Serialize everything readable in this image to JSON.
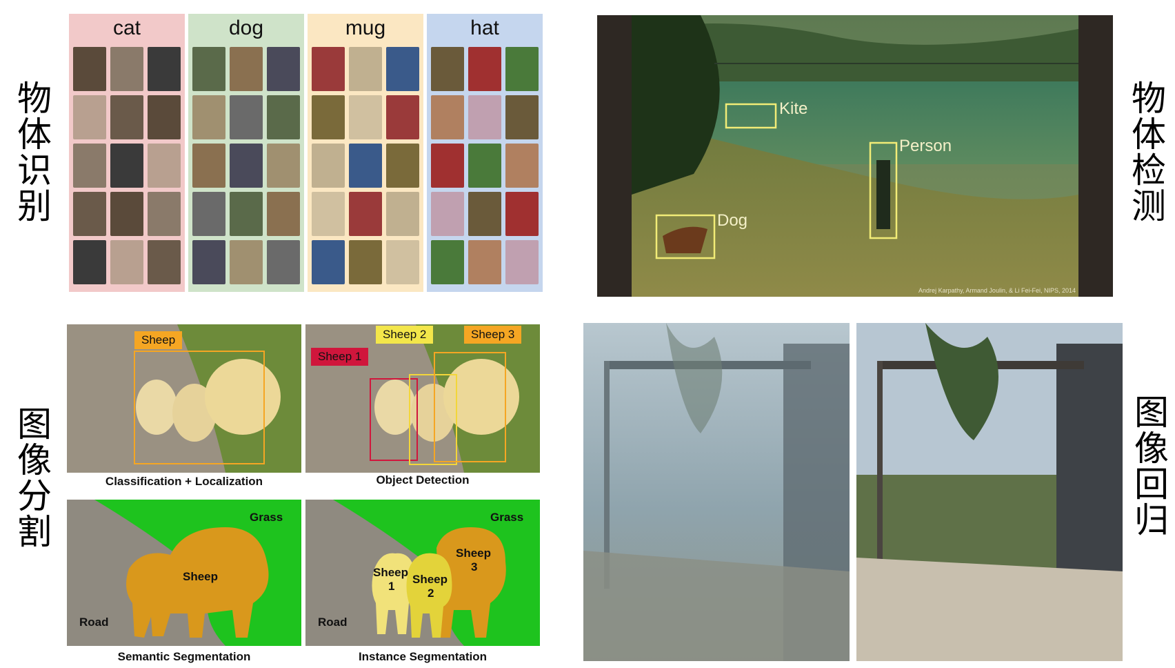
{
  "labels": {
    "recognition": "物体识别",
    "detection": "物体检测",
    "segmentation": "图像分割",
    "regression": "图像回归"
  },
  "recognition_grid": {
    "categories": [
      {
        "name": "cat",
        "bg": "#f2c9c9"
      },
      {
        "name": "dog",
        "bg": "#cfe3c9"
      },
      {
        "name": "mug",
        "bg": "#fbe7c2"
      },
      {
        "name": "hat",
        "bg": "#c5d6ee"
      }
    ]
  },
  "detection_photo": {
    "labels": [
      "Kite",
      "Person",
      "Dog"
    ],
    "credit": "Andrej Karpathy, Armand Joulin, & Li Fei-Fei, NIPS, 2014"
  },
  "segmentation": {
    "classification_caption": "Classification + Localization",
    "detection_caption": "Object Detection",
    "semantic_caption": "Semantic Segmentation",
    "instance_caption": "Instance Segmentation",
    "tags": {
      "sheep": "Sheep",
      "sheep1": "Sheep 1",
      "sheep2": "Sheep 2",
      "sheep3": "Sheep 3"
    },
    "semantic": {
      "grass": "Grass",
      "road": "Road",
      "sheep": "Sheep"
    },
    "instance": {
      "grass": "Grass",
      "road": "Road",
      "sheep1_a": "Sheep",
      "sheep1_b": "1",
      "sheep2_a": "Sheep",
      "sheep2_b": "2",
      "sheep3_a": "Sheep",
      "sheep3_b": "3"
    }
  },
  "colors": {
    "grass_green": "#1ec31e",
    "road_gray": "#8f8a80",
    "sheep_orange": "#d9981c",
    "sheep_yellow": "#f1df5a",
    "box_yellow": "#f3d63a",
    "tag_orange": "#f5a623",
    "tag_red": "#d0163c"
  }
}
